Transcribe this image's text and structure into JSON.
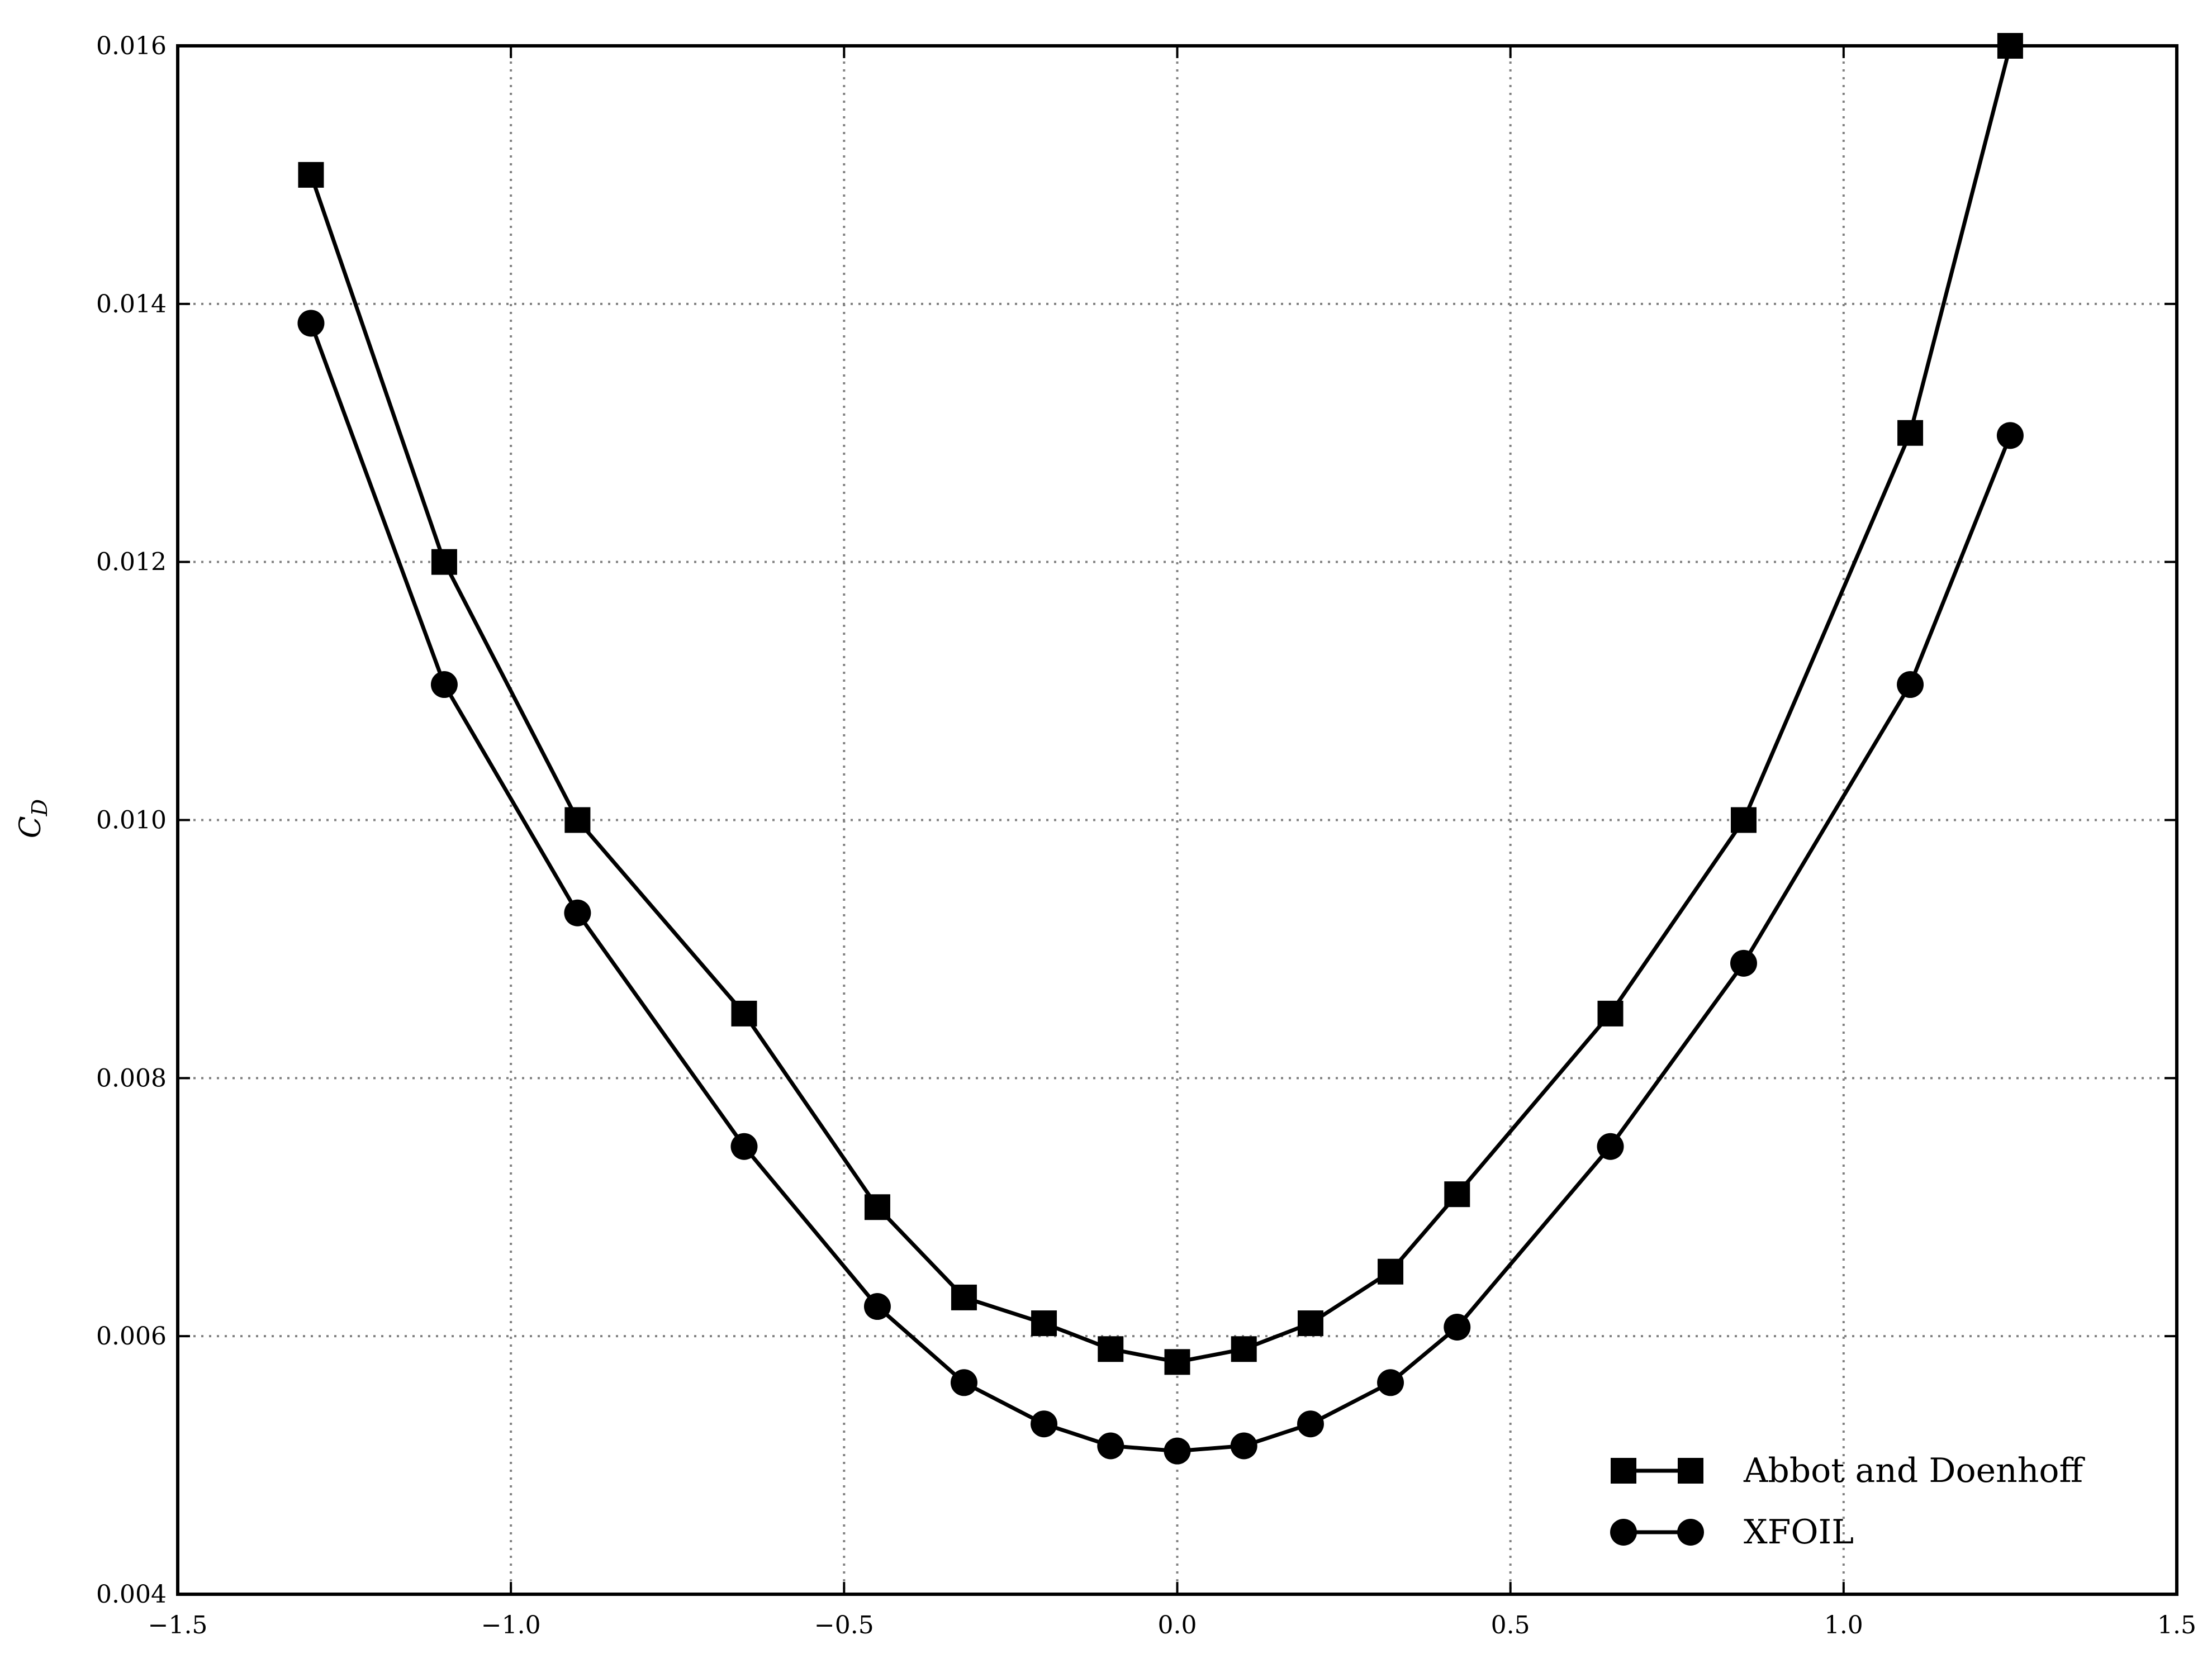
{
  "chart_data": {
    "type": "line",
    "title": "",
    "xlabel": "",
    "ylabel": "C",
    "ylabel_subscript": "D",
    "xlim": [
      -1.5,
      1.5
    ],
    "ylim": [
      0.004,
      0.016
    ],
    "x_ticks": [
      -1.5,
      -1.0,
      -0.5,
      0.0,
      0.5,
      1.0,
      1.5
    ],
    "x_tick_labels": [
      "−1.5",
      "−1.0",
      "−0.5",
      "0.0",
      "0.5",
      "1.0",
      "1.5"
    ],
    "y_ticks": [
      0.004,
      0.006,
      0.008,
      0.01,
      0.012,
      0.014,
      0.016
    ],
    "y_tick_labels": [
      "0.004",
      "0.006",
      "0.008",
      "0.010",
      "0.012",
      "0.014",
      "0.016"
    ],
    "grid": true,
    "legend_position": "bottom-right",
    "series": [
      {
        "name": "Abbot and Doenhoff",
        "marker": "square",
        "color": "#000000",
        "x": [
          -1.3,
          -1.1,
          -0.9,
          -0.65,
          -0.45,
          -0.32,
          -0.2,
          -0.1,
          0.0,
          0.1,
          0.2,
          0.32,
          0.42,
          0.65,
          0.85,
          1.1,
          1.25
        ],
        "y": [
          0.015,
          0.012,
          0.01,
          0.0085,
          0.007,
          0.0063,
          0.0061,
          0.0059,
          0.0058,
          0.0059,
          0.0061,
          0.0065,
          0.0071,
          0.0085,
          0.01,
          0.013,
          0.016
        ]
      },
      {
        "name": "XFOIL",
        "marker": "circle",
        "color": "#000000",
        "x": [
          -1.3,
          -1.1,
          -0.9,
          -0.65,
          -0.45,
          -0.32,
          -0.2,
          -0.1,
          0.0,
          0.1,
          0.2,
          0.32,
          0.42,
          0.65,
          0.85,
          1.1,
          1.25
        ],
        "y": [
          0.01385,
          0.01105,
          0.00928,
          0.00747,
          0.00623,
          0.00564,
          0.00532,
          0.00515,
          0.00511,
          0.00515,
          0.00532,
          0.00564,
          0.00607,
          0.00747,
          0.00889,
          0.01105,
          0.01298
        ]
      }
    ]
  }
}
